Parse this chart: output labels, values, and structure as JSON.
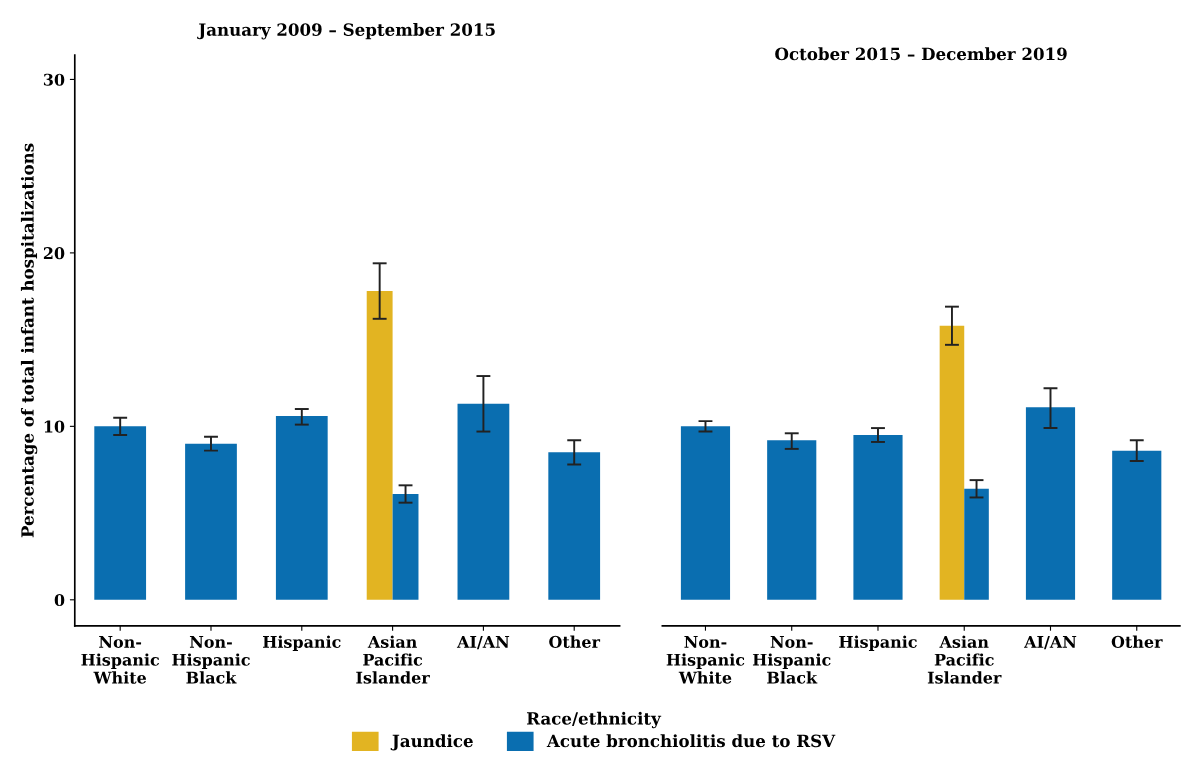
{
  "chart_data": [
    {
      "type": "bar",
      "title": "January 2009 – September 2015",
      "xlabel": "Race/ethnicity",
      "ylabel": "Percentage of total infant hospitalizations",
      "categories": [
        "Non-\nHispanic\nWhite",
        "Non-\nHispanic\nBlack",
        "Hispanic",
        "Asian\nPacific\nIslander",
        "AI/AN",
        "Other"
      ],
      "series": [
        {
          "name": "Jaundice",
          "color": "#e2b422",
          "values": [
            null,
            null,
            null,
            17.8,
            null,
            null
          ],
          "errors": [
            null,
            null,
            null,
            [
              16.2,
              19.4
            ],
            null,
            null
          ]
        },
        {
          "name": "Acute bronchiolitis due to RSV",
          "color": "#0a6eb0",
          "values": [
            10.0,
            9.0,
            10.6,
            6.1,
            11.3,
            8.5
          ],
          "errors": [
            [
              9.5,
              10.5
            ],
            [
              8.6,
              9.4
            ],
            [
              10.1,
              11.0
            ],
            [
              5.6,
              6.6
            ],
            [
              9.7,
              12.9
            ],
            [
              7.8,
              9.2
            ]
          ]
        }
      ],
      "ylim": [
        -1.5,
        31.4
      ],
      "yticks": [
        0,
        10,
        20,
        30
      ],
      "grid": false,
      "legend": "bottom"
    },
    {
      "type": "bar",
      "title": "October 2015 – December 2019",
      "categories": [
        "Non-\nHispanic\nWhite",
        "Non-\nHispanic\nBlack",
        "Hispanic",
        "Asian\nPacific\nIslander",
        "AI/AN",
        "Other"
      ],
      "series": [
        {
          "name": "Jaundice",
          "color": "#e2b422",
          "values": [
            null,
            null,
            null,
            15.8,
            null,
            null
          ],
          "errors": [
            null,
            null,
            null,
            [
              14.7,
              16.9
            ],
            null,
            null
          ]
        },
        {
          "name": "Acute bronchiolitis due to RSV",
          "color": "#0a6eb0",
          "values": [
            10.0,
            9.2,
            9.5,
            6.4,
            11.1,
            8.6
          ],
          "errors": [
            [
              9.7,
              10.3
            ],
            [
              8.7,
              9.6
            ],
            [
              9.1,
              9.9
            ],
            [
              5.9,
              6.9
            ],
            [
              9.9,
              12.2
            ],
            [
              8.0,
              9.2
            ]
          ]
        }
      ],
      "ylim": [
        -1.5,
        30
      ],
      "yticks": [
        0,
        10,
        20,
        30
      ],
      "grid": false,
      "legend": "bottom",
      "tick_labels": "x"
    }
  ]
}
